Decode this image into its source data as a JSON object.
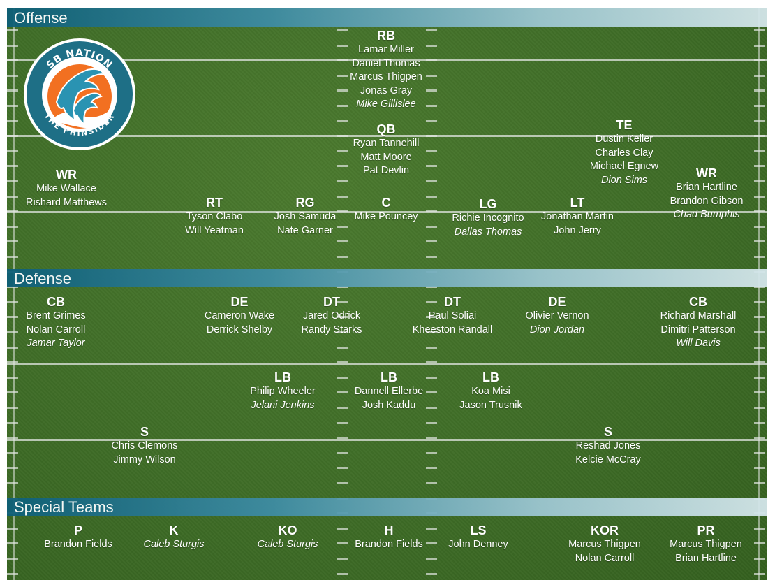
{
  "sections": {
    "offense": "Offense",
    "defense": "Defense",
    "special": "Special Teams"
  },
  "logo": {
    "top_text": "SB NATION",
    "bottom_text": "THE PHINSIDER"
  },
  "groups": [
    {
      "id": "off-rb",
      "pos": "RB",
      "players": [
        {
          "name": "Lamar Miller"
        },
        {
          "name": "Daniel Thomas"
        },
        {
          "name": "Marcus Thigpen"
        },
        {
          "name": "Jonas Gray"
        },
        {
          "name": "Mike Gillislee",
          "italic": true
        }
      ]
    },
    {
      "id": "off-qb",
      "pos": "QB",
      "players": [
        {
          "name": "Ryan Tannehill"
        },
        {
          "name": "Matt Moore"
        },
        {
          "name": "Pat Devlin"
        }
      ]
    },
    {
      "id": "off-te",
      "pos": "TE",
      "players": [
        {
          "name": "Dustin Keller"
        },
        {
          "name": "Charles Clay"
        },
        {
          "name": "Michael Egnew"
        },
        {
          "name": "Dion Sims",
          "italic": true
        }
      ]
    },
    {
      "id": "off-wr-left",
      "pos": "WR",
      "players": [
        {
          "name": "Mike Wallace"
        },
        {
          "name": "Rishard Matthews"
        }
      ]
    },
    {
      "id": "off-wr-right",
      "pos": "WR",
      "players": [
        {
          "name": "Brian Hartline"
        },
        {
          "name": "Brandon Gibson"
        },
        {
          "name": "Chad Bumphis",
          "italic": true
        }
      ]
    },
    {
      "id": "off-rt",
      "pos": "RT",
      "players": [
        {
          "name": "Tyson Clabo"
        },
        {
          "name": "Will Yeatman"
        }
      ]
    },
    {
      "id": "off-rg",
      "pos": "RG",
      "players": [
        {
          "name": "Josh Samuda"
        },
        {
          "name": "Nate Garner"
        }
      ]
    },
    {
      "id": "off-c",
      "pos": "C",
      "players": [
        {
          "name": "Mike Pouncey"
        }
      ]
    },
    {
      "id": "off-lg",
      "pos": "LG",
      "players": [
        {
          "name": "Richie Incognito"
        },
        {
          "name": "Dallas Thomas",
          "italic": true
        }
      ]
    },
    {
      "id": "off-lt",
      "pos": "LT",
      "players": [
        {
          "name": "Jonathan Martin"
        },
        {
          "name": "John Jerry"
        }
      ]
    },
    {
      "id": "def-cb-left",
      "pos": "CB",
      "players": [
        {
          "name": "Brent Grimes"
        },
        {
          "name": "Nolan Carroll"
        },
        {
          "name": "Jamar Taylor",
          "italic": true
        }
      ]
    },
    {
      "id": "def-de-left",
      "pos": "DE",
      "players": [
        {
          "name": "Cameron Wake"
        },
        {
          "name": "Derrick Shelby"
        }
      ]
    },
    {
      "id": "def-dt-left",
      "pos": "DT",
      "players": [
        {
          "name": "Jared Odrick"
        },
        {
          "name": "Randy Starks"
        }
      ]
    },
    {
      "id": "def-dt-right",
      "pos": "DT",
      "players": [
        {
          "name": "Paul Soliai"
        },
        {
          "name": "Kheeston Randall"
        }
      ]
    },
    {
      "id": "def-de-right",
      "pos": "DE",
      "players": [
        {
          "name": "Olivier Vernon"
        },
        {
          "name": "Dion Jordan",
          "italic": true
        }
      ]
    },
    {
      "id": "def-cb-right",
      "pos": "CB",
      "players": [
        {
          "name": "Richard Marshall"
        },
        {
          "name": "Dimitri Patterson"
        },
        {
          "name": "Will Davis",
          "italic": true
        }
      ]
    },
    {
      "id": "def-lb-left",
      "pos": "LB",
      "players": [
        {
          "name": "Philip Wheeler"
        },
        {
          "name": "Jelani Jenkins",
          "italic": true
        }
      ]
    },
    {
      "id": "def-lb-mid",
      "pos": "LB",
      "players": [
        {
          "name": "Dannell Ellerbe"
        },
        {
          "name": "Josh Kaddu"
        }
      ]
    },
    {
      "id": "def-lb-right",
      "pos": "LB",
      "players": [
        {
          "name": "Koa Misi"
        },
        {
          "name": "Jason Trusnik"
        }
      ]
    },
    {
      "id": "def-s-left",
      "pos": "S",
      "players": [
        {
          "name": "Chris Clemons"
        },
        {
          "name": "Jimmy Wilson"
        }
      ]
    },
    {
      "id": "def-s-right",
      "pos": "S",
      "players": [
        {
          "name": "Reshad Jones"
        },
        {
          "name": "Kelcie McCray"
        }
      ]
    },
    {
      "id": "st-p",
      "pos": "P",
      "players": [
        {
          "name": "Brandon Fields"
        }
      ]
    },
    {
      "id": "st-k",
      "pos": "K",
      "players": [
        {
          "name": "Caleb Sturgis",
          "italic": true
        }
      ]
    },
    {
      "id": "st-ko",
      "pos": "KO",
      "players": [
        {
          "name": "Caleb Sturgis",
          "italic": true
        }
      ]
    },
    {
      "id": "st-h",
      "pos": "H",
      "players": [
        {
          "name": "Brandon Fields"
        }
      ]
    },
    {
      "id": "st-ls",
      "pos": "LS",
      "players": [
        {
          "name": "John Denney"
        }
      ]
    },
    {
      "id": "st-kor",
      "pos": "KOR",
      "players": [
        {
          "name": "Marcus Thigpen"
        },
        {
          "name": "Nolan Carroll"
        }
      ]
    },
    {
      "id": "st-pr",
      "pos": "PR",
      "players": [
        {
          "name": "Marcus Thigpen"
        },
        {
          "name": "Brian Hartline"
        }
      ]
    }
  ]
}
